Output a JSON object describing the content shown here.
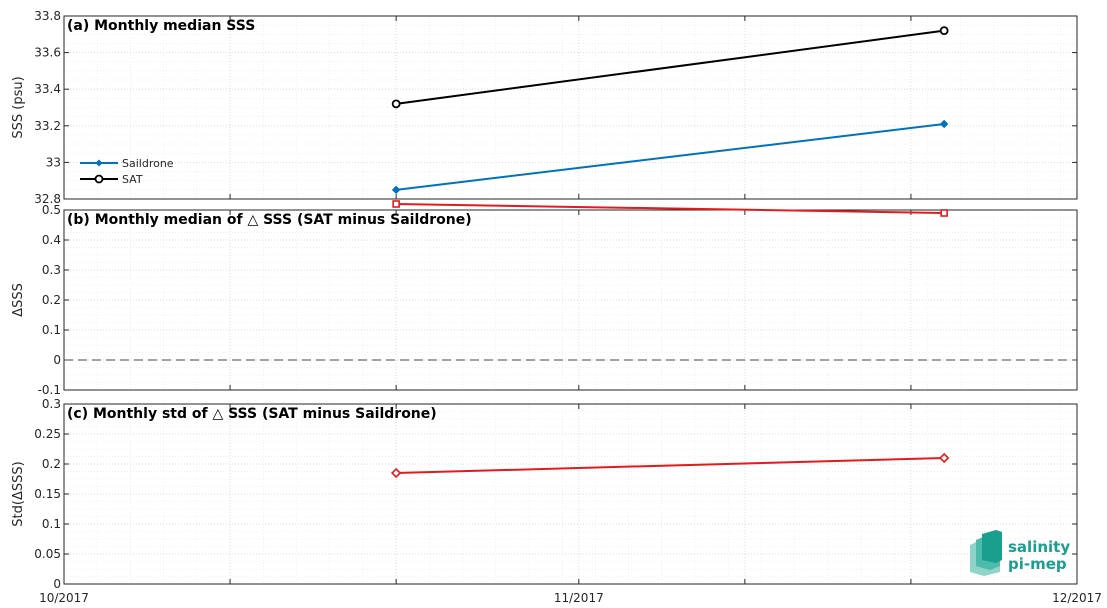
{
  "chart_data": [
    {
      "type": "line",
      "title": "(a) Monthly median SSS",
      "ylabel": "SSS (psu)",
      "ylim": [
        32.8,
        33.8
      ],
      "yticks": [
        "32.8",
        "33",
        "33.2",
        "33.4",
        "33.6",
        "33.8"
      ],
      "grid": true,
      "legend_position": "middle-left",
      "series": [
        {
          "name": "Saildrone",
          "color": "#0072bd",
          "marker": "diamond-filled",
          "x": [
            "2017-10-21",
            "2017-11-23"
          ],
          "values": [
            32.85,
            33.21
          ]
        },
        {
          "name": "SAT",
          "color": "#000000",
          "marker": "circle-open",
          "x": [
            "2017-10-21",
            "2017-11-23"
          ],
          "values": [
            33.32,
            33.72
          ]
        }
      ]
    },
    {
      "type": "line",
      "title": "(b) Monthly median of △ SSS (SAT minus Saildrone)",
      "ylabel": "ΔSSS",
      "ylim": [
        -0.1,
        0.5
      ],
      "yticks": [
        "-0.1",
        "0",
        "0.1",
        "0.2",
        "0.3",
        "0.4",
        "0.5"
      ],
      "grid": true,
      "zero_line": true,
      "series": [
        {
          "color": "#e41a1c",
          "marker": "square-open",
          "x": [
            "2017-10-21",
            "2017-11-23"
          ],
          "values": [
            0.52,
            0.49
          ]
        }
      ]
    },
    {
      "type": "line",
      "title": "(c) Monthly std of △ SSS (SAT minus Saildrone)",
      "ylabel": "Std(ΔSSS)",
      "ylim": [
        0,
        0.3
      ],
      "yticks": [
        "0",
        "0.05",
        "0.1",
        "0.15",
        "0.2",
        "0.25",
        "0.3"
      ],
      "grid": true,
      "series": [
        {
          "color": "#e41a1c",
          "marker": "diamond-open",
          "x": [
            "2017-10-21",
            "2017-11-23"
          ],
          "values": [
            0.185,
            0.21
          ]
        }
      ]
    }
  ],
  "x_axis": {
    "range": [
      "2017-10-01",
      "2017-12-01"
    ],
    "tick_labels": [
      "10/2017",
      "11/2017",
      "12/2017"
    ]
  },
  "logo": {
    "line1": "salinity",
    "line2": "pi-mep",
    "color": "#1a9f8f"
  }
}
